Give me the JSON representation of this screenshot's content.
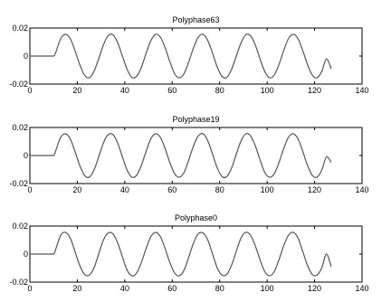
{
  "chart_data": [
    {
      "type": "line",
      "title": "Polyphase63",
      "xlabel": "",
      "ylabel": "",
      "xlim": [
        0,
        140
      ],
      "ylim": [
        -0.02,
        0.02
      ],
      "x_ticks": [
        0,
        20,
        40,
        60,
        80,
        100,
        120,
        140
      ],
      "y_ticks": [
        0.02,
        0,
        -0.02
      ],
      "x_tick_labels": [
        "0",
        "20",
        "40",
        "60",
        "80",
        "100",
        "120",
        "140"
      ],
      "y_tick_labels": [
        "0.02",
        "0",
        "-0.02"
      ],
      "grid": false,
      "series": [
        {
          "color": "#555555",
          "x": [
            0,
            7,
            10,
            11,
            13,
            15,
            17,
            19,
            21,
            23,
            25,
            27,
            29,
            31,
            33,
            35,
            37,
            39,
            41,
            43,
            45,
            47,
            49,
            51,
            53,
            55,
            57,
            59,
            61,
            63,
            65,
            67,
            69,
            71,
            73,
            75,
            77,
            79,
            81,
            83,
            85,
            87,
            89,
            91,
            93,
            95,
            97,
            99,
            101,
            103,
            105,
            107,
            109,
            111,
            113,
            115,
            117,
            119,
            121,
            123,
            125,
            127
          ],
          "y": [
            0,
            0,
            0,
            0.003,
            0.0125,
            0.0155,
            0.0125,
            0.004,
            -0.006,
            -0.0135,
            -0.0155,
            -0.011,
            -0.002,
            0.008,
            0.0145,
            0.0152,
            0.0095,
            0,
            -0.0095,
            -0.0152,
            -0.0145,
            -0.008,
            0.002,
            0.011,
            0.0155,
            0.0135,
            0.006,
            -0.004,
            -0.0125,
            -0.0155,
            -0.0125,
            -0.004,
            0.006,
            0.0135,
            0.0155,
            0.011,
            0.002,
            -0.008,
            -0.0145,
            -0.0152,
            -0.0095,
            0,
            0.0095,
            0.0152,
            0.0145,
            0.008,
            -0.002,
            -0.011,
            -0.0155,
            -0.0135,
            -0.006,
            0.004,
            0.0125,
            0.0155,
            0.0125,
            0.004,
            -0.006,
            -0.0135,
            -0.0155,
            -0.011,
            -0.002,
            -0.009
          ]
        }
      ]
    },
    {
      "type": "line",
      "title": "Polyphase19",
      "xlabel": "",
      "ylabel": "",
      "xlim": [
        0,
        140
      ],
      "ylim": [
        -0.02,
        0.02
      ],
      "x_ticks": [
        0,
        20,
        40,
        60,
        80,
        100,
        120,
        140
      ],
      "y_ticks": [
        0.02,
        0,
        -0.02
      ],
      "x_tick_labels": [
        "0",
        "20",
        "40",
        "60",
        "80",
        "100",
        "120",
        "140"
      ],
      "y_tick_labels": [
        "0.02",
        "0",
        "-0.02"
      ],
      "grid": false,
      "series": [
        {
          "color": "#555555",
          "x": [
            0,
            7,
            10,
            11,
            13,
            15,
            17,
            19,
            21,
            23,
            25,
            27,
            29,
            31,
            33,
            35,
            37,
            39,
            41,
            43,
            45,
            47,
            49,
            51,
            53,
            55,
            57,
            59,
            61,
            63,
            65,
            67,
            69,
            71,
            73,
            75,
            77,
            79,
            81,
            83,
            85,
            87,
            89,
            91,
            93,
            95,
            97,
            99,
            101,
            103,
            105,
            107,
            109,
            111,
            113,
            115,
            117,
            119,
            121,
            123,
            125,
            127
          ],
          "y": [
            0,
            0,
            0,
            0.004,
            0.013,
            0.0155,
            0.012,
            0.003,
            -0.007,
            -0.014,
            -0.0155,
            -0.0105,
            -0.001,
            0.009,
            0.015,
            0.015,
            0.009,
            -0.001,
            -0.0105,
            -0.0155,
            -0.014,
            -0.007,
            0.003,
            0.012,
            0.0155,
            0.013,
            0.005,
            -0.005,
            -0.013,
            -0.0155,
            -0.012,
            -0.003,
            0.007,
            0.014,
            0.0155,
            0.0105,
            0.001,
            -0.009,
            -0.015,
            -0.015,
            -0.009,
            0.001,
            0.0105,
            0.0155,
            0.014,
            0.007,
            -0.003,
            -0.012,
            -0.0155,
            -0.013,
            -0.005,
            0.005,
            0.013,
            0.0155,
            0.012,
            0.003,
            -0.007,
            -0.014,
            -0.0155,
            -0.0105,
            -0.001,
            -0.005
          ]
        }
      ]
    },
    {
      "type": "line",
      "title": "Polyphase0",
      "xlabel": "",
      "ylabel": "",
      "xlim": [
        0,
        140
      ],
      "ylim": [
        -0.02,
        0.02
      ],
      "x_ticks": [
        0,
        20,
        40,
        60,
        80,
        100,
        120,
        140
      ],
      "y_ticks": [
        0.02,
        0,
        -0.02
      ],
      "x_tick_labels": [
        "0",
        "20",
        "40",
        "60",
        "80",
        "100",
        "120",
        "140"
      ],
      "y_tick_labels": [
        "0.02",
        "0",
        "-0.02"
      ],
      "grid": false,
      "series": [
        {
          "color": "#555555",
          "x": [
            0,
            7,
            10,
            11,
            13,
            15,
            17,
            19,
            21,
            23,
            25,
            27,
            29,
            31,
            33,
            35,
            37,
            39,
            41,
            43,
            45,
            47,
            49,
            51,
            53,
            55,
            57,
            59,
            61,
            63,
            65,
            67,
            69,
            71,
            73,
            75,
            77,
            79,
            81,
            83,
            85,
            87,
            89,
            91,
            93,
            95,
            97,
            99,
            101,
            103,
            105,
            107,
            109,
            111,
            113,
            115,
            117,
            119,
            121,
            123,
            125,
            127
          ],
          "y": [
            0,
            0,
            0,
            0.004,
            0.0135,
            0.0155,
            0.0115,
            0.002,
            -0.008,
            -0.0145,
            -0.015,
            -0.01,
            0,
            0.01,
            0.015,
            0.0145,
            0.008,
            -0.002,
            -0.0115,
            -0.0155,
            -0.0135,
            -0.006,
            0.004,
            0.0125,
            0.0155,
            0.0125,
            0.004,
            -0.006,
            -0.0135,
            -0.0155,
            -0.0115,
            -0.002,
            0.008,
            0.0145,
            0.015,
            0.01,
            0,
            -0.01,
            -0.015,
            -0.0145,
            -0.008,
            0.002,
            0.0115,
            0.0155,
            0.0135,
            0.006,
            -0.004,
            -0.0125,
            -0.0155,
            -0.0125,
            -0.004,
            0.006,
            0.0135,
            0.0155,
            0.0115,
            0.002,
            -0.008,
            -0.0145,
            -0.015,
            -0.01,
            0,
            -0.009
          ]
        }
      ]
    }
  ]
}
